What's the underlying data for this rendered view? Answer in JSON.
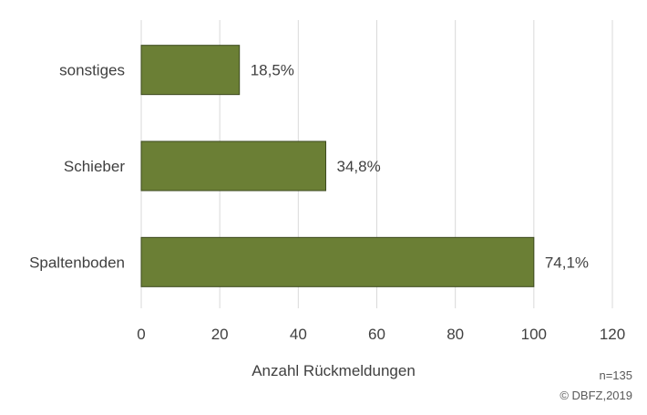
{
  "chart_data": {
    "type": "bar",
    "orientation": "horizontal",
    "categories": [
      "sonstiges",
      "Schieber",
      "Spaltenboden"
    ],
    "values": [
      25,
      47,
      100
    ],
    "data_labels": [
      "18,5%",
      "34,8%",
      "74,1%"
    ],
    "xlabel": "Anzahl Rückmeldungen",
    "ylabel": "",
    "xlim": [
      0,
      120
    ],
    "xticks": [
      0,
      20,
      40,
      60,
      80,
      100,
      120
    ],
    "grid": true,
    "bar_color": "#6b7f35",
    "bar_edge_color": "#3d4a1f",
    "gridline_color": "#d9d9d9"
  },
  "footnote": {
    "n": "n=135",
    "source": "© DBFZ,2019"
  }
}
